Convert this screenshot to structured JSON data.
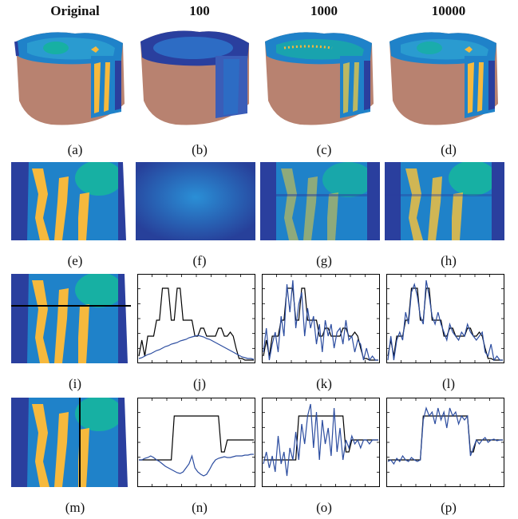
{
  "headers": [
    "Original",
    "100",
    "1000",
    "10000"
  ],
  "captions": {
    "row1": [
      "(a)",
      "(b)",
      "(c)",
      "(d)"
    ],
    "row2": [
      "(e)",
      "(f)",
      "(g)",
      "(h)"
    ],
    "row3": [
      "(i)",
      "(j)",
      "(k)",
      "(l)"
    ],
    "row4": [
      "(m)",
      "(n)",
      "(o)",
      "(p)"
    ]
  },
  "colors": {
    "deep_blue": "#2a3f9e",
    "mid_blue": "#1f82c9",
    "teal": "#17b0a3",
    "yellow": "#f6b93d",
    "skin": "#b88270",
    "black_line": "#000000",
    "blue_line": "#2c4da0"
  },
  "chart_data": [
    {
      "id": "j",
      "type": "line",
      "series": [
        {
          "color": "#000000",
          "values": [
            0.05,
            0.25,
            0.05,
            0.3,
            0.3,
            0.3,
            0.5,
            0.5,
            0.9,
            0.9,
            0.9,
            0.5,
            0.5,
            0.9,
            0.9,
            0.5,
            0.5,
            0.5,
            0.5,
            0.3,
            0.3,
            0.4,
            0.4,
            0.3,
            0.3,
            0.3,
            0.3,
            0.4,
            0.4,
            0.3,
            0.3,
            0.35,
            0.3,
            0.15,
            0.02,
            0.02,
            0.0,
            0.0,
            0.0,
            0.0
          ]
        },
        {
          "color": "#2c4da0",
          "values": [
            0.02,
            0.03,
            0.05,
            0.07,
            0.08,
            0.1,
            0.12,
            0.13,
            0.15,
            0.17,
            0.18,
            0.2,
            0.21,
            0.22,
            0.24,
            0.25,
            0.26,
            0.28,
            0.29,
            0.3,
            0.31,
            0.3,
            0.29,
            0.27,
            0.26,
            0.24,
            0.22,
            0.2,
            0.18,
            0.16,
            0.14,
            0.12,
            0.1,
            0.08,
            0.06,
            0.04,
            0.03,
            0.02,
            0.02,
            0.01
          ]
        }
      ]
    },
    {
      "id": "k",
      "type": "line",
      "series": [
        {
          "color": "#000000",
          "values": [
            0.05,
            0.25,
            0.05,
            0.3,
            0.3,
            0.3,
            0.5,
            0.5,
            0.9,
            0.9,
            0.9,
            0.5,
            0.5,
            0.9,
            0.9,
            0.5,
            0.5,
            0.5,
            0.5,
            0.3,
            0.3,
            0.4,
            0.4,
            0.3,
            0.3,
            0.3,
            0.3,
            0.4,
            0.4,
            0.3,
            0.3,
            0.35,
            0.3,
            0.15,
            0.02,
            0.02,
            0.0,
            0.0,
            0.0,
            0.0
          ]
        },
        {
          "color": "#2c4da0",
          "values": [
            0.1,
            0.4,
            0.0,
            0.2,
            0.35,
            0.1,
            0.55,
            0.3,
            0.95,
            0.6,
            1.0,
            0.4,
            0.7,
            0.85,
            0.3,
            0.65,
            0.4,
            0.55,
            0.2,
            0.45,
            0.1,
            0.5,
            0.3,
            0.45,
            0.15,
            0.35,
            0.4,
            0.2,
            0.5,
            0.25,
            0.3,
            0.1,
            0.25,
            0.2,
            0.0,
            0.15,
            0.0,
            0.05,
            0.0,
            0.0
          ]
        }
      ]
    },
    {
      "id": "l",
      "type": "line",
      "series": [
        {
          "color": "#000000",
          "values": [
            0.05,
            0.25,
            0.05,
            0.3,
            0.3,
            0.3,
            0.5,
            0.5,
            0.9,
            0.9,
            0.9,
            0.5,
            0.5,
            0.9,
            0.9,
            0.5,
            0.5,
            0.5,
            0.5,
            0.3,
            0.3,
            0.4,
            0.4,
            0.3,
            0.3,
            0.3,
            0.3,
            0.4,
            0.4,
            0.3,
            0.3,
            0.35,
            0.3,
            0.15,
            0.02,
            0.02,
            0.0,
            0.0,
            0.0,
            0.0
          ]
        },
        {
          "color": "#2c4da0",
          "values": [
            0.0,
            0.3,
            0.0,
            0.25,
            0.35,
            0.25,
            0.6,
            0.45,
            0.85,
            0.95,
            0.8,
            0.55,
            0.45,
            1.0,
            0.8,
            0.55,
            0.45,
            0.6,
            0.45,
            0.35,
            0.25,
            0.45,
            0.35,
            0.3,
            0.25,
            0.35,
            0.3,
            0.45,
            0.35,
            0.3,
            0.25,
            0.3,
            0.35,
            0.1,
            0.05,
            0.2,
            0.0,
            0.05,
            0.0,
            0.0
          ]
        }
      ]
    },
    {
      "id": "n",
      "type": "line",
      "series": [
        {
          "color": "#000000",
          "values": [
            0.3,
            0.3,
            0.3,
            0.3,
            0.3,
            0.3,
            0.3,
            0.3,
            0.3,
            0.3,
            0.3,
            0.3,
            0.85,
            0.85,
            0.85,
            0.85,
            0.85,
            0.85,
            0.85,
            0.85,
            0.85,
            0.85,
            0.85,
            0.85,
            0.85,
            0.85,
            0.85,
            0.85,
            0.4,
            0.4,
            0.55,
            0.55,
            0.55,
            0.55,
            0.55,
            0.55,
            0.55,
            0.55,
            0.55,
            0.55
          ]
        },
        {
          "color": "#2c4da0",
          "values": [
            0.3,
            0.3,
            0.32,
            0.33,
            0.35,
            0.33,
            0.3,
            0.28,
            0.25,
            0.22,
            0.2,
            0.18,
            0.16,
            0.14,
            0.13,
            0.15,
            0.2,
            0.25,
            0.35,
            0.2,
            0.15,
            0.12,
            0.1,
            0.12,
            0.18,
            0.25,
            0.3,
            0.32,
            0.33,
            0.34,
            0.33,
            0.33,
            0.34,
            0.35,
            0.35,
            0.35,
            0.36,
            0.36,
            0.37,
            0.37
          ]
        }
      ]
    },
    {
      "id": "o",
      "type": "line",
      "series": [
        {
          "color": "#000000",
          "values": [
            0.3,
            0.3,
            0.3,
            0.3,
            0.3,
            0.3,
            0.3,
            0.3,
            0.3,
            0.3,
            0.3,
            0.3,
            0.85,
            0.85,
            0.85,
            0.85,
            0.85,
            0.85,
            0.85,
            0.85,
            0.85,
            0.85,
            0.85,
            0.85,
            0.85,
            0.85,
            0.85,
            0.85,
            0.4,
            0.4,
            0.55,
            0.55,
            0.55,
            0.55,
            0.55,
            0.55,
            0.55,
            0.55,
            0.55,
            0.55
          ]
        },
        {
          "color": "#2c4da0",
          "values": [
            0.25,
            0.4,
            0.2,
            0.35,
            0.15,
            0.6,
            0.25,
            0.4,
            0.1,
            0.45,
            0.3,
            0.65,
            0.3,
            0.75,
            0.5,
            0.85,
            1.0,
            0.45,
            0.9,
            0.3,
            0.8,
            0.5,
            0.7,
            0.35,
            0.95,
            0.4,
            0.7,
            0.3,
            0.55,
            0.45,
            0.6,
            0.5,
            0.55,
            0.45,
            0.55,
            0.55,
            0.5,
            0.55,
            0.55,
            0.55
          ]
        }
      ]
    },
    {
      "id": "p",
      "type": "line",
      "series": [
        {
          "color": "#000000",
          "values": [
            0.3,
            0.3,
            0.3,
            0.3,
            0.3,
            0.3,
            0.3,
            0.3,
            0.3,
            0.3,
            0.3,
            0.3,
            0.85,
            0.85,
            0.85,
            0.85,
            0.85,
            0.85,
            0.85,
            0.85,
            0.85,
            0.85,
            0.85,
            0.85,
            0.85,
            0.85,
            0.85,
            0.85,
            0.4,
            0.4,
            0.55,
            0.55,
            0.55,
            0.55,
            0.55,
            0.55,
            0.55,
            0.55,
            0.55,
            0.55
          ]
        },
        {
          "color": "#2c4da0",
          "values": [
            0.28,
            0.3,
            0.25,
            0.32,
            0.28,
            0.35,
            0.3,
            0.28,
            0.33,
            0.3,
            0.28,
            0.3,
            0.8,
            0.95,
            0.85,
            0.9,
            0.75,
            0.95,
            0.8,
            0.9,
            0.7,
            0.95,
            0.85,
            0.9,
            0.75,
            0.85,
            0.8,
            0.85,
            0.35,
            0.45,
            0.55,
            0.5,
            0.55,
            0.58,
            0.52,
            0.55,
            0.56,
            0.54,
            0.55,
            0.55
          ]
        }
      ]
    }
  ]
}
